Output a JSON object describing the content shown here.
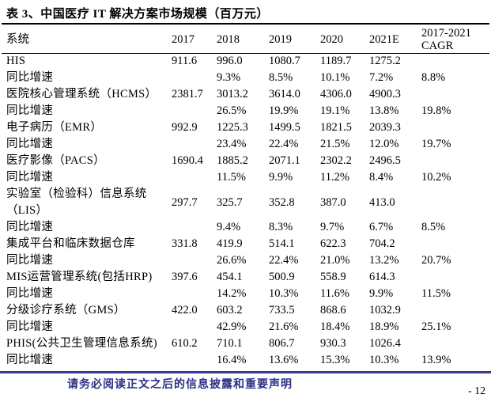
{
  "page": {
    "title": "表 3、中国医疗 IT 解决方案市场规模（百万元）",
    "footer_notice": "请务必阅读正文之后的信息披露和重要声明",
    "page_number": "- 12",
    "colors": {
      "text": "#000000",
      "table_rule": "#000000",
      "footer_rule": "#353b8e",
      "footer_text": "#2b3085"
    }
  },
  "table": {
    "columns": [
      "系统",
      "2017",
      "2018",
      "2019",
      "2020",
      "2021E",
      "2017-2021 CAGR"
    ],
    "rows": [
      {
        "label": "HIS",
        "values": [
          "911.6",
          "996.0",
          "1080.7",
          "1189.7",
          "1275.2",
          ""
        ]
      },
      {
        "label": "同比增速",
        "values": [
          "",
          "9.3%",
          "8.5%",
          "10.1%",
          "7.2%",
          "8.8%"
        ]
      },
      {
        "label": "医院核心管理系统（HCMS）",
        "values": [
          "2381.7",
          "3013.2",
          "3614.0",
          "4306.0",
          "4900.3",
          ""
        ]
      },
      {
        "label": "同比增速",
        "values": [
          "",
          "26.5%",
          "19.9%",
          "19.1%",
          "13.8%",
          "19.8%"
        ]
      },
      {
        "label": "电子病历（EMR）",
        "values": [
          "992.9",
          "1225.3",
          "1499.5",
          "1821.5",
          "2039.3",
          ""
        ]
      },
      {
        "label": "同比增速",
        "values": [
          "",
          "23.4%",
          "22.4%",
          "21.5%",
          "12.0%",
          "19.7%"
        ]
      },
      {
        "label": "医疗影像（PACS）",
        "values": [
          "1690.4",
          "1885.2",
          "2071.1",
          "2302.2",
          "2496.5",
          ""
        ]
      },
      {
        "label": "同比增速",
        "values": [
          "",
          "11.5%",
          "9.9%",
          "11.2%",
          "8.4%",
          "10.2%"
        ]
      },
      {
        "label": "实验室（检验科）信息系统（LIS）",
        "values": [
          "297.7",
          "325.7",
          "352.8",
          "387.0",
          "413.0",
          ""
        ]
      },
      {
        "label": "同比增速",
        "values": [
          "",
          "9.4%",
          "8.3%",
          "9.7%",
          "6.7%",
          "8.5%"
        ]
      },
      {
        "label": "集成平台和临床数据仓库",
        "values": [
          "331.8",
          "419.9",
          "514.1",
          "622.3",
          "704.2",
          ""
        ]
      },
      {
        "label": "同比增速",
        "values": [
          "",
          "26.6%",
          "22.4%",
          "21.0%",
          "13.2%",
          "20.7%"
        ]
      },
      {
        "label": "MIS运营管理系统(包括HRP)",
        "values": [
          "397.6",
          "454.1",
          "500.9",
          "558.9",
          "614.3",
          ""
        ]
      },
      {
        "label": "同比增速",
        "values": [
          "",
          "14.2%",
          "10.3%",
          "11.6%",
          "9.9%",
          "11.5%"
        ]
      },
      {
        "label": "分级诊疗系统（GMS）",
        "values": [
          "422.0",
          "603.2",
          "733.5",
          "868.6",
          "1032.9",
          ""
        ]
      },
      {
        "label": "同比增速",
        "values": [
          "",
          "42.9%",
          "21.6%",
          "18.4%",
          "18.9%",
          "25.1%"
        ]
      },
      {
        "label": "PHIS(公共卫生管理信息系统)",
        "values": [
          "610.2",
          "710.1",
          "806.7",
          "930.3",
          "1026.4",
          ""
        ]
      },
      {
        "label": "同比增速",
        "values": [
          "",
          "16.4%",
          "13.6%",
          "15.3%",
          "10.3%",
          "13.9%"
        ]
      }
    ]
  }
}
